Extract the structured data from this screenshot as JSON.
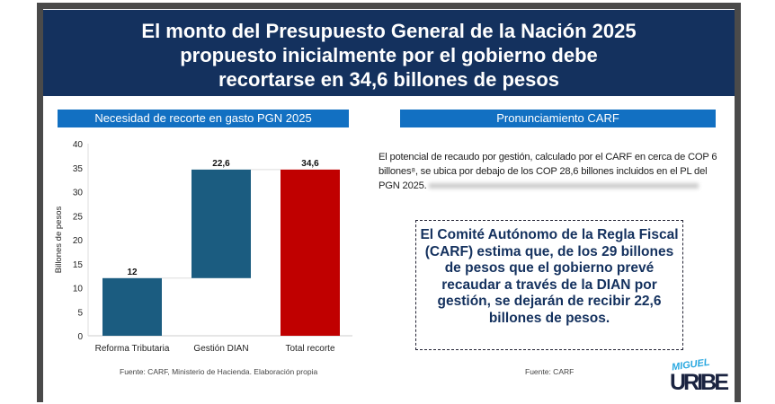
{
  "title_lines": [
    "El monto del Presupuesto General de la Nación 2025",
    "propuesto inicialmente por el gobierno debe",
    "recortarse en 34,6 billones de pesos"
  ],
  "chart_header": "Necesidad de recorte en gasto PGN 2025",
  "right_header": "Pronunciamiento CARF",
  "paragraph": "El potencial de recaudo por gestión, calculado por el CARF en cerca de COP 6 billones⁸, se ubica por debajo de los COP 28,6 billones incluidos en el PL del PGN 2025.",
  "callout": "El Comité Autónomo de la Regla Fiscal (CARF) estima que, de los 29 billones de pesos que el gobierno prevé recaudar a través de la DIAN por gestión, se dejarán de recibir 22,6 billones de pesos.",
  "chart_source": "Fuente: CARF, Ministerio de Hacienda. Elaboración propia",
  "right_source": "Fuente: CARF",
  "logo": {
    "top": "MIGUEL",
    "bottom": "URIBE"
  },
  "chart_data": {
    "type": "bar",
    "subtype": "waterfall",
    "title": "Necesidad de recorte en gasto PGN 2025",
    "xlabel": "",
    "ylabel": "Billones de pesos",
    "ylim": [
      0,
      40
    ],
    "yticks": [
      0,
      5,
      10,
      15,
      20,
      25,
      30,
      35,
      40
    ],
    "categories": [
      "Reforma Tributaria",
      "Gestión DIAN",
      "Total recorte"
    ],
    "values": [
      12,
      22.6,
      34.6
    ],
    "bases": [
      0,
      12,
      0
    ],
    "labels": [
      "12",
      "22,6",
      "34,6"
    ],
    "colors": [
      "#1b5c80",
      "#1b5c80",
      "#c00000"
    ]
  }
}
